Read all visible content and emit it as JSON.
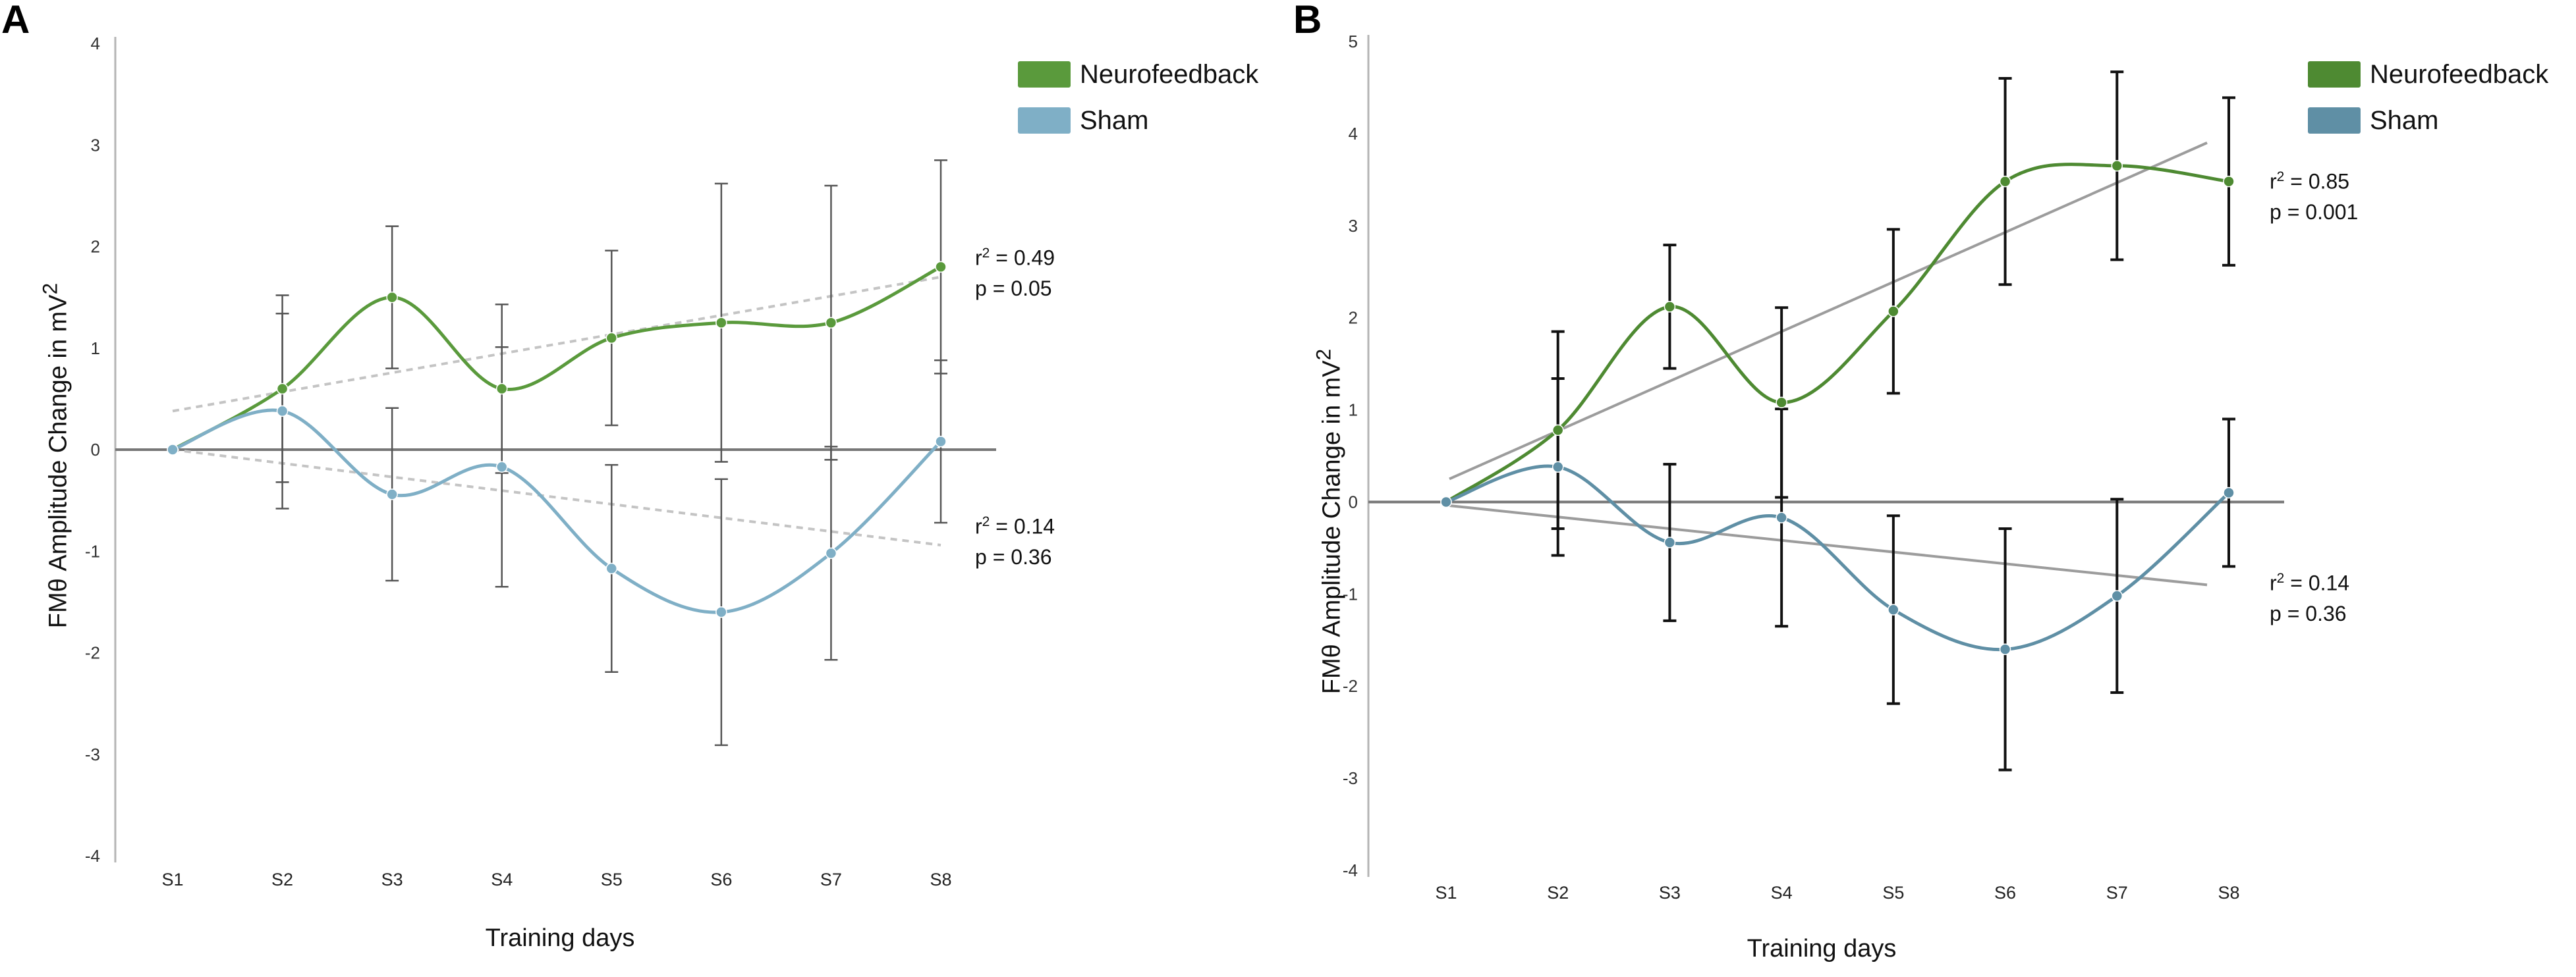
{
  "chart_data": [
    {
      "panel": "A",
      "type": "line",
      "title": "",
      "xlabel": "Training days",
      "ylabel": "FMθ  Amplitude Change in mV",
      "ylabel_sup": "2",
      "categories": [
        "S1",
        "S2",
        "S3",
        "S4",
        "S5",
        "S6",
        "S7",
        "S8"
      ],
      "ylim": [
        -4,
        4
      ],
      "yticks": [
        "4",
        "3",
        "2",
        "1",
        "0",
        "-1",
        "-2",
        "-3",
        "-4"
      ],
      "series": [
        {
          "name": "Neurofeedback",
          "color": "#5a9a3c",
          "values": [
            0,
            0.6,
            1.5,
            0.6,
            1.1,
            1.25,
            1.25,
            1.8
          ],
          "error": [
            0,
            0.92,
            0.7,
            0.83,
            0.86,
            1.37,
            1.35,
            1.05
          ],
          "trend": [
            0.38,
            1.7
          ],
          "trend_style": "dashed",
          "stats": {
            "r2_label": "r",
            "r2_value": " = 0.49",
            "p": "p = 0.05"
          }
        },
        {
          "name": "Sham",
          "color": "#7fafc6",
          "values": [
            0,
            0.38,
            -0.44,
            -0.17,
            -1.17,
            -1.6,
            -1.02,
            0.08
          ],
          "error": [
            0,
            0.96,
            0.85,
            1.18,
            1.02,
            1.31,
            1.05,
            0.8
          ],
          "trend": [
            0,
            -0.94
          ],
          "trend_style": "dashed",
          "stats": {
            "r2_label": "r",
            "r2_value": " = 0.14",
            "p": "p = 0.36"
          }
        }
      ]
    },
    {
      "panel": "B",
      "type": "line",
      "title": "",
      "xlabel": "Training days",
      "ylabel": "FMθ  Amplitude Change in mV",
      "ylabel_sup": "2",
      "categories": [
        "S1",
        "S2",
        "S3",
        "S4",
        "S5",
        "S6",
        "S7",
        "S8"
      ],
      "ylim": [
        -4,
        5
      ],
      "yticks": [
        "5",
        "4",
        "3",
        "2",
        "1",
        "0",
        "-1",
        "-2",
        "-3",
        "-4"
      ],
      "series": [
        {
          "name": "Neurofeedback",
          "color": "#4e8a32",
          "values": [
            0,
            0.78,
            2.12,
            1.08,
            2.07,
            3.48,
            3.65,
            3.48
          ],
          "error": [
            0,
            1.07,
            0.67,
            1.03,
            0.89,
            1.12,
            1.02,
            0.91
          ],
          "trend": [
            0.25,
            3.9
          ],
          "trend_style": "solid",
          "stats": {
            "r2_label": "r",
            "r2_value": " = 0.85",
            "p": "p = 0.001"
          }
        },
        {
          "name": "Sham",
          "color": "#5f8fa5",
          "values": [
            0,
            0.38,
            -0.44,
            -0.17,
            -1.17,
            -1.6,
            -1.02,
            0.1
          ],
          "error": [
            0,
            0.96,
            0.85,
            1.18,
            1.02,
            1.31,
            1.05,
            0.8
          ],
          "trend": [
            -0.04,
            -0.9
          ],
          "trend_style": "solid",
          "stats": {
            "r2_label": "r",
            "r2_value": " = 0.14",
            "p": "p = 0.36"
          }
        }
      ]
    }
  ]
}
